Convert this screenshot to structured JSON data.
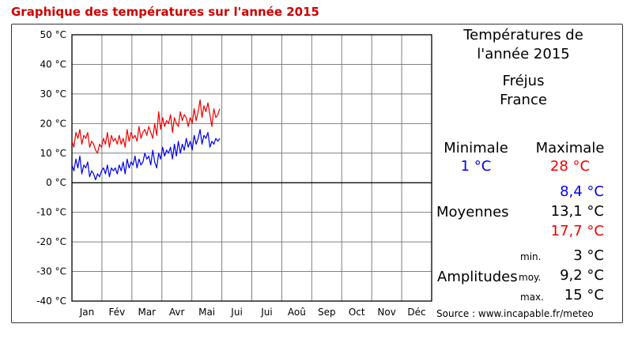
{
  "header": {
    "title": "Graphique des températures sur l'année 2015"
  },
  "panel": {
    "title_line1": "Températures de",
    "title_line2": "l'année 2015",
    "city": "Fréjus",
    "country": "France",
    "min_label": "Minimale",
    "max_label": "Maximale",
    "min_value": "1 °C",
    "max_value": "28 °C",
    "averages_label": "Moyennes",
    "avg_min": "8,4 °C",
    "avg_mean": "13,1 °C",
    "avg_max": "17,7 °C",
    "amplitudes_label": "Amplitudes",
    "amp_min_label": "min.",
    "amp_avg_label": "moy.",
    "amp_max_label": "max.",
    "amp_min": "3 °C",
    "amp_avg": "9,2 °C",
    "amp_max": "15 °C",
    "source": "Source : www.incapable.fr/meteo"
  },
  "colors": {
    "max_series": "#ee0000",
    "min_series": "#0000ee",
    "grid": "#808080",
    "axis": "#000000"
  },
  "chart_data": {
    "type": "line",
    "title": "",
    "xlabel": "",
    "ylabel": "",
    "ylim": [
      -40,
      50
    ],
    "yticks": [
      "50 °C",
      "40 °C",
      "30 °C",
      "20 °C",
      "10 °C",
      "0 °C",
      "-10 °C",
      "-20 °C",
      "-30 °C",
      "-40 °C"
    ],
    "categories": [
      "Jan",
      "Fév",
      "Mar",
      "Avr",
      "Mai",
      "Jui",
      "Jui",
      "Aoû",
      "Sep",
      "Oct",
      "Nov",
      "Déc"
    ],
    "grid": true,
    "series": [
      {
        "color": "#ee0000",
        "x": [
          1,
          3,
          5,
          7,
          9,
          11,
          13,
          15,
          17,
          19,
          21,
          23,
          25,
          27,
          29,
          31,
          33,
          35,
          37,
          39,
          41,
          43,
          45,
          47,
          49,
          51,
          53,
          55,
          57,
          59,
          61,
          63,
          65,
          67,
          69,
          71,
          73,
          75,
          77,
          79,
          81,
          83,
          85,
          87,
          89,
          91,
          93,
          95,
          97,
          99,
          101,
          103,
          105,
          107,
          109,
          111,
          113,
          115,
          117,
          119,
          121,
          123,
          125,
          127,
          129,
          131,
          133,
          135,
          137,
          139,
          141,
          143,
          145,
          147,
          149,
          151
        ],
        "values": [
          14,
          12,
          17,
          15,
          18,
          13,
          16,
          15,
          17,
          12,
          14,
          13,
          11,
          10,
          13,
          12,
          15,
          13,
          17,
          12,
          16,
          14,
          15,
          13,
          16,
          13,
          15,
          12,
          18,
          14,
          17,
          15,
          16,
          14,
          19,
          15,
          17,
          18,
          16,
          19,
          17,
          15,
          20,
          16,
          24,
          18,
          22,
          19,
          21,
          20,
          23,
          17,
          22,
          20,
          19,
          24,
          21,
          23,
          22,
          19,
          22,
          20,
          25,
          21,
          24,
          28,
          22,
          26,
          24,
          27,
          23,
          19,
          25,
          22,
          23,
          25
        ]
      },
      {
        "color": "#0000ee",
        "x": [
          1,
          3,
          5,
          7,
          9,
          11,
          13,
          15,
          17,
          19,
          21,
          23,
          25,
          27,
          29,
          31,
          33,
          35,
          37,
          39,
          41,
          43,
          45,
          47,
          49,
          51,
          53,
          55,
          57,
          59,
          61,
          63,
          65,
          67,
          69,
          71,
          73,
          75,
          77,
          79,
          81,
          83,
          85,
          87,
          89,
          91,
          93,
          95,
          97,
          99,
          101,
          103,
          105,
          107,
          109,
          111,
          113,
          115,
          117,
          119,
          121,
          123,
          125,
          127,
          129,
          131,
          133,
          135,
          137,
          139,
          141,
          143,
          145,
          147,
          149,
          151
        ],
        "values": [
          6,
          4,
          8,
          5,
          9,
          3,
          6,
          5,
          7,
          2,
          4,
          3,
          1,
          3,
          2,
          4,
          5,
          3,
          6,
          2,
          5,
          4,
          5,
          3,
          6,
          4,
          7,
          3,
          8,
          5,
          7,
          6,
          9,
          5,
          8,
          6,
          7,
          10,
          8,
          9,
          6,
          11,
          7,
          5,
          10,
          8,
          12,
          9,
          11,
          10,
          12,
          8,
          13,
          9,
          14,
          10,
          13,
          11,
          15,
          12,
          14,
          11,
          16,
          13,
          15,
          18,
          13,
          16,
          15,
          17,
          12,
          14,
          13,
          15,
          14,
          15
        ]
      }
    ]
  }
}
